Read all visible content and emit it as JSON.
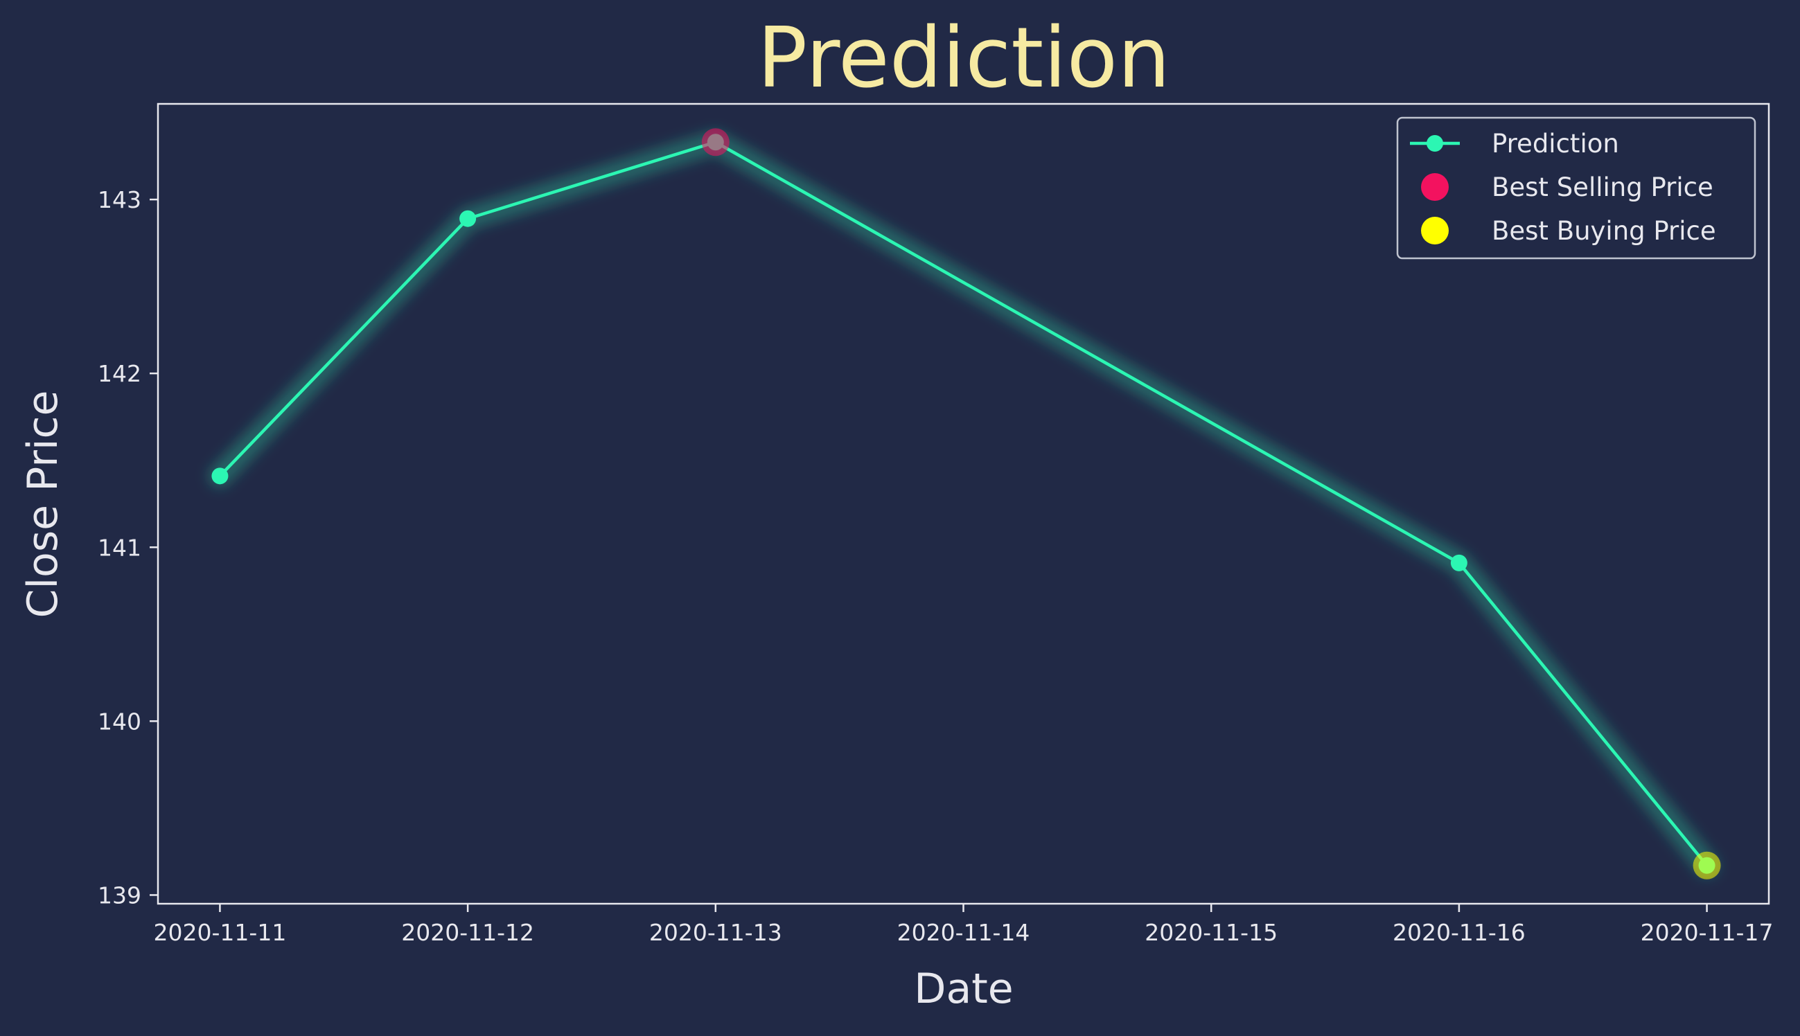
{
  "chart_data": {
    "type": "line",
    "title": "Prediction",
    "xlabel": "Date",
    "ylabel": "Close Price",
    "x": [
      "2020-11-11",
      "2020-11-12",
      "2020-11-13",
      "2020-11-16",
      "2020-11-17"
    ],
    "x_ticks": [
      "2020-11-11",
      "2020-11-12",
      "2020-11-13",
      "2020-11-14",
      "2020-11-15",
      "2020-11-16",
      "2020-11-17"
    ],
    "xlim": [
      "2020-11-10 18:00",
      "2020-11-17 06:00"
    ],
    "y_ticks": [
      139,
      140,
      141,
      142,
      143
    ],
    "ylim": [
      138.95,
      143.55
    ],
    "grid": false,
    "legend_position": "top-right",
    "series": [
      {
        "name": "Prediction",
        "x": [
          "2020-11-11",
          "2020-11-12",
          "2020-11-13",
          "2020-11-16",
          "2020-11-17"
        ],
        "values": [
          141.41,
          142.89,
          143.33,
          140.91,
          139.17
        ],
        "color": "#2cf6b3",
        "marker": "circle"
      },
      {
        "name": "Best Selling Price",
        "x": [
          "2020-11-13"
        ],
        "values": [
          143.33
        ],
        "color": "#f3125f",
        "marker": "circle"
      },
      {
        "name": "Best Buying Price",
        "x": [
          "2020-11-17"
        ],
        "values": [
          139.17
        ],
        "color": "#ffff00",
        "marker": "circle"
      }
    ],
    "colors": {
      "background": "#212946",
      "axis": "#e8e8ee",
      "title": "#f6eaa2"
    }
  }
}
